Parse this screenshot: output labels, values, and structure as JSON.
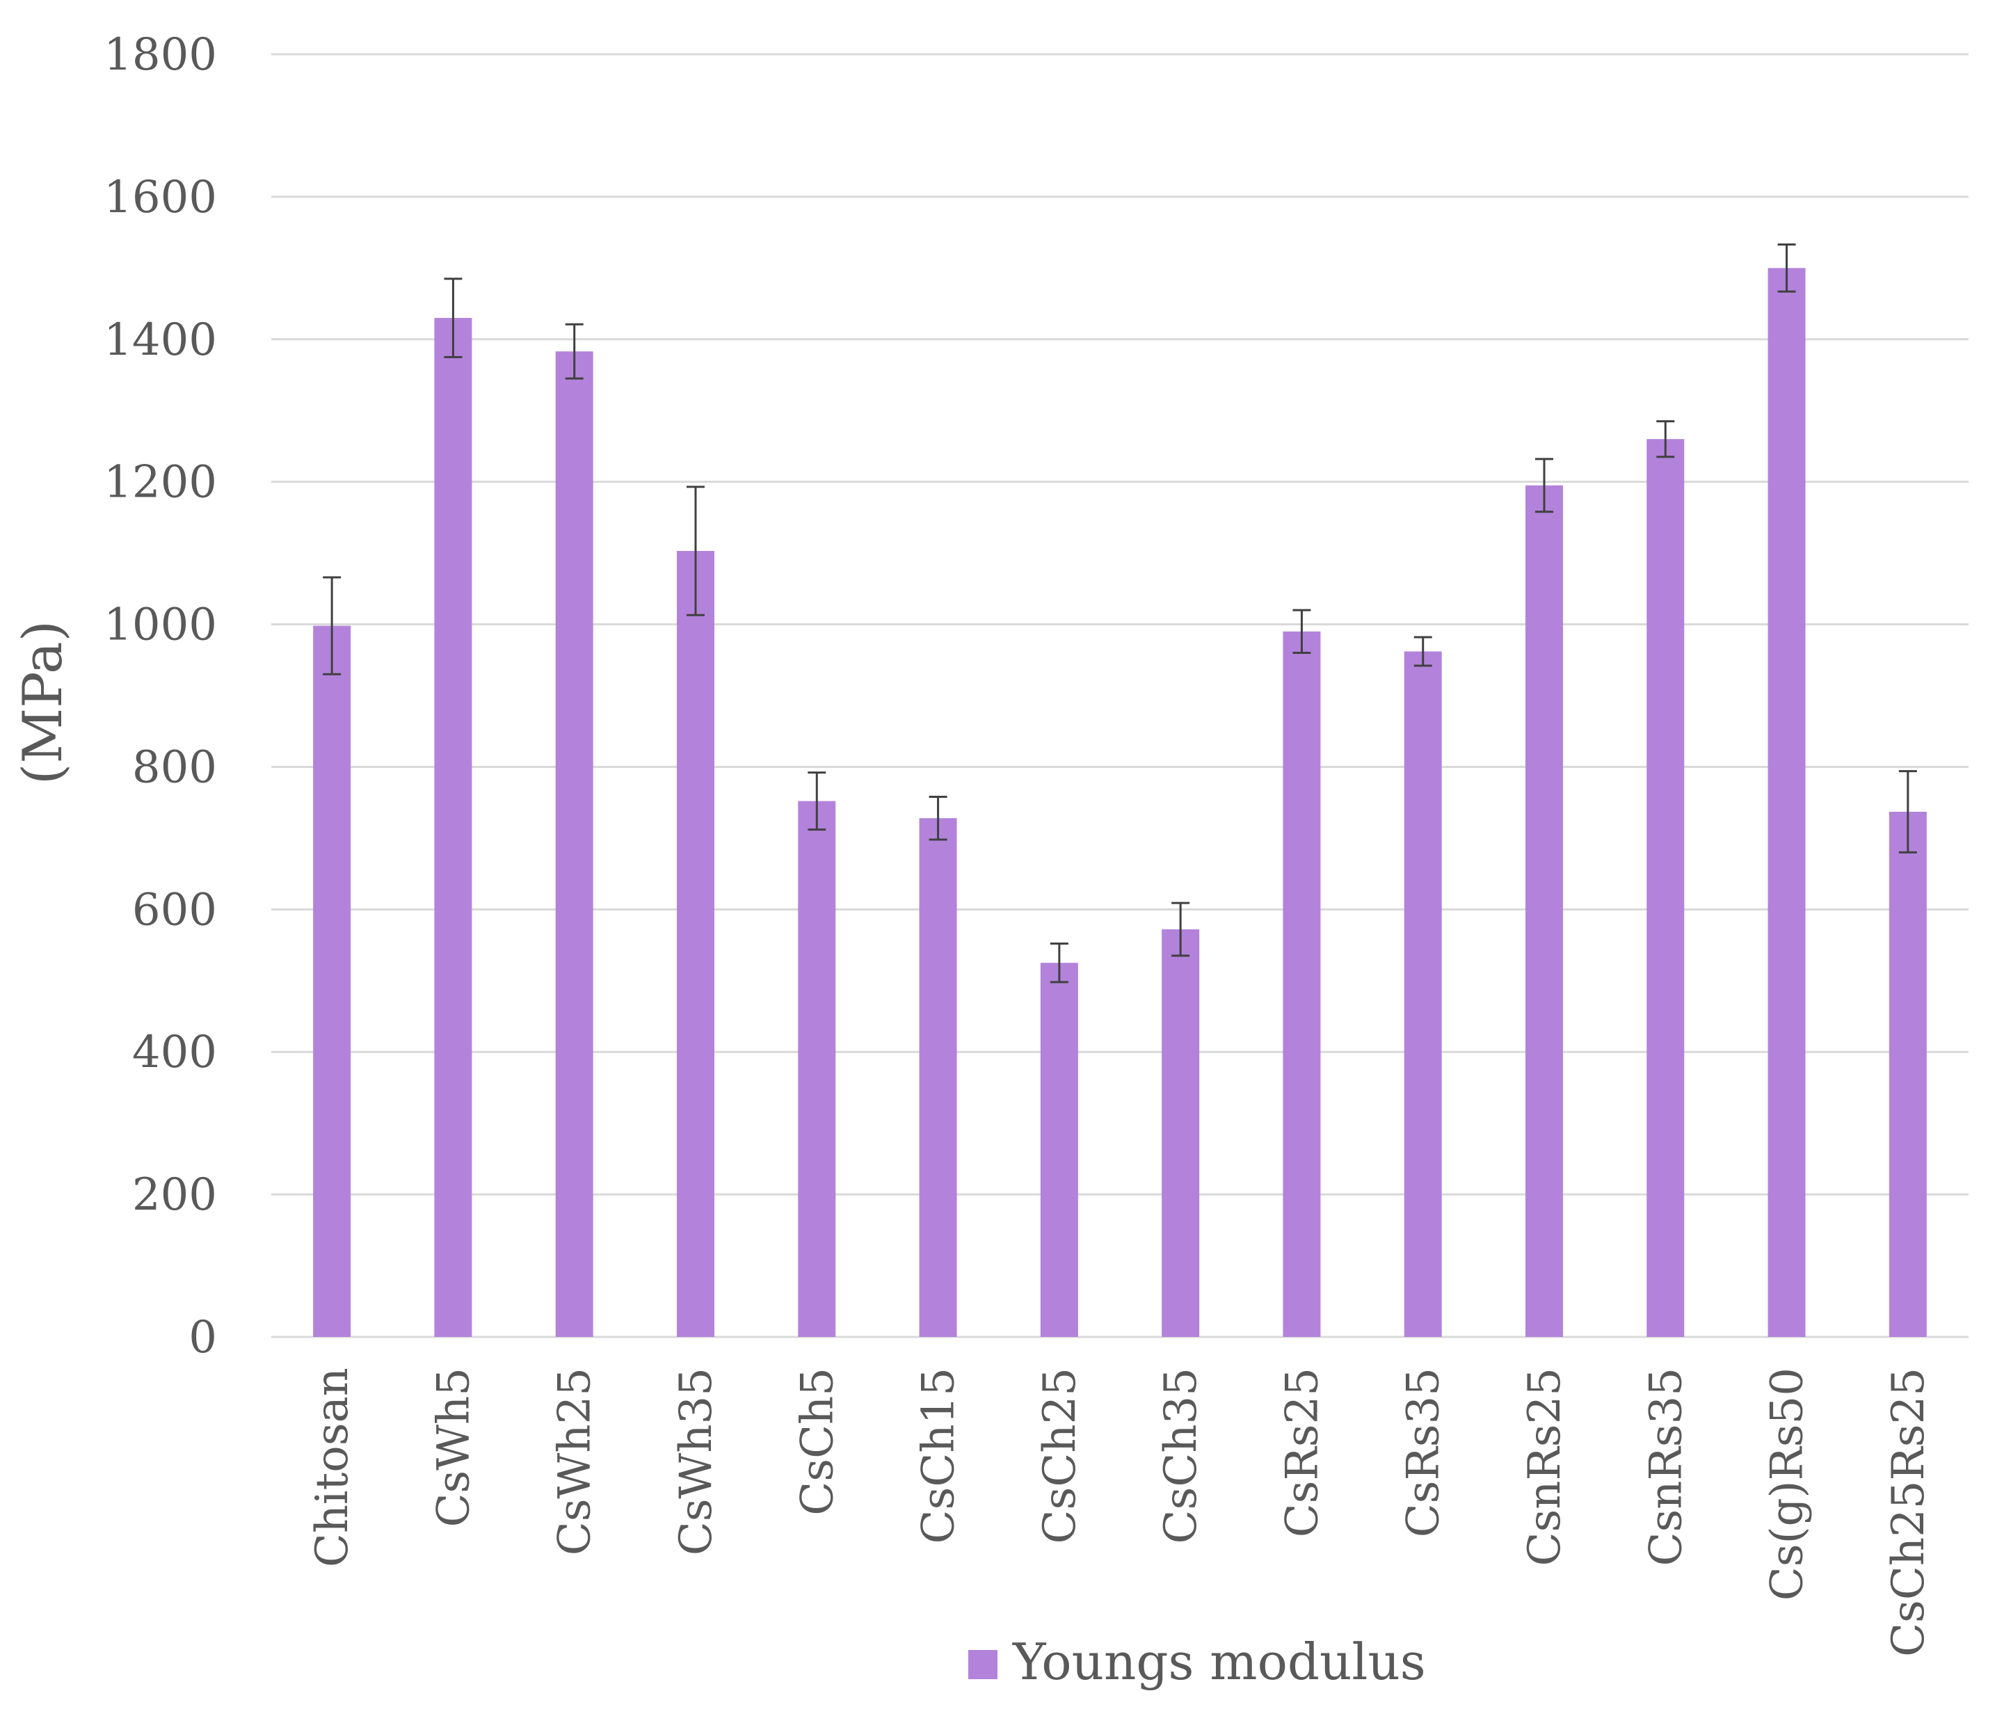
{
  "chart_data": {
    "type": "bar",
    "title": "",
    "xlabel": "",
    "ylabel": "(MPa)",
    "ylim": [
      0,
      1800
    ],
    "yticks": [
      0,
      200,
      400,
      600,
      800,
      1000,
      1200,
      1400,
      1600,
      1800
    ],
    "grid": true,
    "legend_position": "bottom",
    "categories": [
      "Chitosan",
      "CsWh5",
      "CsWh25",
      "CsWh35",
      "CsCh5",
      "CsCh15",
      "CsCh25",
      "CsCh35",
      "CsRs25",
      "CsRs35",
      "CsnRs25",
      "CsnRs35",
      "Cs(g)Rs50",
      "CsCh25Rs25"
    ],
    "series": [
      {
        "name": "Youngs modulus",
        "color": "#b383db",
        "values": [
          998,
          1430,
          1383,
          1103,
          752,
          728,
          525,
          572,
          990,
          962,
          1195,
          1260,
          1500,
          737
        ],
        "errors": [
          68,
          55,
          38,
          90,
          40,
          30,
          27,
          37,
          30,
          20,
          37,
          25,
          33,
          57
        ]
      }
    ],
    "colors": {
      "grid": "#d9d9d9",
      "error_bar": "#404040",
      "text": "#595959"
    }
  }
}
